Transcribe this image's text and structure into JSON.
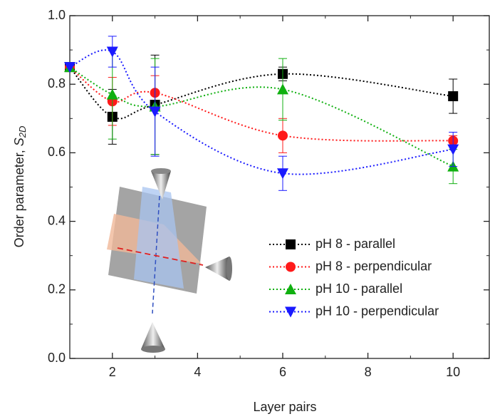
{
  "chart_data": {
    "type": "line",
    "xlabel": "Layer pairs",
    "ylabel": "Order parameter, ",
    "ylabel_symbol": "S",
    "ylabel_subscript": "2D",
    "x": [
      1,
      2,
      3,
      6,
      10
    ],
    "xlim": [
      1,
      10.85
    ],
    "xticks": [
      2,
      4,
      6,
      8,
      10
    ],
    "xminorticks": [
      3,
      5,
      7,
      9
    ],
    "ylim": [
      0,
      1
    ],
    "yticks": [
      {
        "value": 0,
        "label": "0.0"
      },
      {
        "value": 0.2,
        "label": "0.2"
      },
      {
        "value": 0.4,
        "label": "0.4"
      },
      {
        "value": 0.6,
        "label": "0.6"
      },
      {
        "value": 0.8,
        "label": "0.8"
      },
      {
        "value": 1,
        "label": "1.0"
      }
    ],
    "yminorticks": [
      0.1,
      0.3,
      0.5,
      0.7,
      0.9
    ],
    "legend": "lower right",
    "series": [
      {
        "name": "pH 8 - parallel",
        "color": "#000000",
        "marker": "square",
        "values": [
          0.85,
          0.705,
          0.74,
          0.83,
          0.765
        ],
        "errors": [
          0,
          0.08,
          0.145,
          0.02,
          0.05
        ]
      },
      {
        "name": "pH 8 - perpendicular",
        "color": "#ff1a1a",
        "marker": "circle",
        "values": [
          0.85,
          0.75,
          0.775,
          0.65,
          0.635
        ],
        "errors": [
          0,
          0.07,
          0.05,
          0.05,
          0.015
        ]
      },
      {
        "name": "pH 10 - parallel",
        "color": "#10b010",
        "marker": "triangle-up",
        "values": [
          0.85,
          0.77,
          0.735,
          0.785,
          0.56
        ],
        "errors": [
          0,
          0.13,
          0.14,
          0.09,
          0.05
        ]
      },
      {
        "name": "pH 10 - perpendicular",
        "color": "#1a1aff",
        "marker": "triangle-down",
        "values": [
          0.85,
          0.895,
          0.72,
          0.54,
          0.61
        ],
        "errors": [
          0,
          0.045,
          0.13,
          0.05,
          0.05
        ]
      }
    ]
  }
}
